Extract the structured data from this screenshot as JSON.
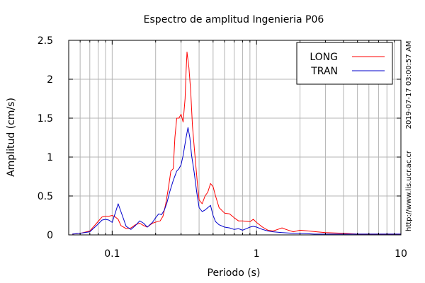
{
  "chart_data": {
    "type": "line",
    "title": "Espectro de amplitud Ingenieria P06",
    "xlabel": "Periodo (s)",
    "ylabel": "Amplitud (cm/s)",
    "x_scale": "log",
    "xlim": [
      0.05,
      10
    ],
    "ylim": [
      0,
      2.5
    ],
    "x_ticks": [
      0.1,
      1,
      10
    ],
    "x_tick_labels": [
      "0.1",
      "1",
      "10"
    ],
    "y_ticks": [
      0,
      0.5,
      1,
      1.5,
      2,
      2.5
    ],
    "y_tick_labels": [
      "0",
      "0.5",
      "1",
      "1.5",
      "2",
      "2.5"
    ],
    "grid": true,
    "legend_position": "top-right",
    "timestamp": "2019-07-17 03:00:57 AM",
    "source": "http://www.lis.ucr.ac.cr",
    "series": [
      {
        "name": "LONG",
        "color": "#ff0000",
        "points": [
          [
            0.053,
            0.01
          ],
          [
            0.06,
            0.02
          ],
          [
            0.07,
            0.05
          ],
          [
            0.078,
            0.15
          ],
          [
            0.085,
            0.23
          ],
          [
            0.09,
            0.24
          ],
          [
            0.095,
            0.24
          ],
          [
            0.1,
            0.25
          ],
          [
            0.105,
            0.23
          ],
          [
            0.11,
            0.2
          ],
          [
            0.115,
            0.12
          ],
          [
            0.125,
            0.08
          ],
          [
            0.135,
            0.09
          ],
          [
            0.145,
            0.13
          ],
          [
            0.155,
            0.15
          ],
          [
            0.165,
            0.12
          ],
          [
            0.175,
            0.1
          ],
          [
            0.19,
            0.15
          ],
          [
            0.205,
            0.17
          ],
          [
            0.215,
            0.18
          ],
          [
            0.225,
            0.24
          ],
          [
            0.235,
            0.4
          ],
          [
            0.245,
            0.6
          ],
          [
            0.255,
            0.82
          ],
          [
            0.265,
            0.85
          ],
          [
            0.272,
            1.25
          ],
          [
            0.28,
            1.5
          ],
          [
            0.29,
            1.5
          ],
          [
            0.3,
            1.55
          ],
          [
            0.31,
            1.45
          ],
          [
            0.32,
            1.75
          ],
          [
            0.325,
            2.1
          ],
          [
            0.33,
            2.35
          ],
          [
            0.34,
            2.15
          ],
          [
            0.35,
            1.85
          ],
          [
            0.36,
            1.4
          ],
          [
            0.375,
            1.0
          ],
          [
            0.39,
            0.65
          ],
          [
            0.4,
            0.45
          ],
          [
            0.42,
            0.4
          ],
          [
            0.44,
            0.5
          ],
          [
            0.46,
            0.55
          ],
          [
            0.48,
            0.66
          ],
          [
            0.5,
            0.62
          ],
          [
            0.52,
            0.5
          ],
          [
            0.55,
            0.35
          ],
          [
            0.6,
            0.28
          ],
          [
            0.65,
            0.27
          ],
          [
            0.7,
            0.22
          ],
          [
            0.75,
            0.18
          ],
          [
            0.8,
            0.18
          ],
          [
            0.9,
            0.17
          ],
          [
            0.95,
            0.2
          ],
          [
            1.0,
            0.16
          ],
          [
            1.1,
            0.1
          ],
          [
            1.2,
            0.06
          ],
          [
            1.3,
            0.05
          ],
          [
            1.4,
            0.07
          ],
          [
            1.5,
            0.09
          ],
          [
            1.6,
            0.07
          ],
          [
            1.8,
            0.04
          ],
          [
            2.0,
            0.06
          ],
          [
            2.3,
            0.05
          ],
          [
            2.6,
            0.04
          ],
          [
            3.0,
            0.03
          ],
          [
            4.0,
            0.02
          ],
          [
            5.0,
            0.01
          ],
          [
            7.0,
            0.01
          ],
          [
            10.0,
            0.01
          ]
        ]
      },
      {
        "name": "TRAN",
        "color": "#0000cc",
        "points": [
          [
            0.053,
            0.01
          ],
          [
            0.06,
            0.02
          ],
          [
            0.07,
            0.04
          ],
          [
            0.078,
            0.12
          ],
          [
            0.085,
            0.19
          ],
          [
            0.09,
            0.2
          ],
          [
            0.095,
            0.19
          ],
          [
            0.1,
            0.16
          ],
          [
            0.105,
            0.28
          ],
          [
            0.11,
            0.4
          ],
          [
            0.115,
            0.3
          ],
          [
            0.125,
            0.11
          ],
          [
            0.135,
            0.07
          ],
          [
            0.145,
            0.12
          ],
          [
            0.155,
            0.18
          ],
          [
            0.165,
            0.15
          ],
          [
            0.175,
            0.1
          ],
          [
            0.19,
            0.16
          ],
          [
            0.2,
            0.22
          ],
          [
            0.21,
            0.27
          ],
          [
            0.22,
            0.26
          ],
          [
            0.23,
            0.32
          ],
          [
            0.24,
            0.42
          ],
          [
            0.25,
            0.55
          ],
          [
            0.265,
            0.7
          ],
          [
            0.28,
            0.82
          ],
          [
            0.29,
            0.85
          ],
          [
            0.3,
            0.9
          ],
          [
            0.31,
            1.02
          ],
          [
            0.325,
            1.25
          ],
          [
            0.335,
            1.38
          ],
          [
            0.345,
            1.25
          ],
          [
            0.355,
            1.02
          ],
          [
            0.37,
            0.8
          ],
          [
            0.385,
            0.55
          ],
          [
            0.4,
            0.35
          ],
          [
            0.42,
            0.3
          ],
          [
            0.44,
            0.32
          ],
          [
            0.46,
            0.35
          ],
          [
            0.48,
            0.38
          ],
          [
            0.5,
            0.25
          ],
          [
            0.52,
            0.17
          ],
          [
            0.55,
            0.13
          ],
          [
            0.6,
            0.1
          ],
          [
            0.65,
            0.09
          ],
          [
            0.7,
            0.07
          ],
          [
            0.75,
            0.08
          ],
          [
            0.8,
            0.06
          ],
          [
            0.85,
            0.08
          ],
          [
            0.9,
            0.1
          ],
          [
            0.95,
            0.11
          ],
          [
            1.0,
            0.1
          ],
          [
            1.1,
            0.07
          ],
          [
            1.2,
            0.05
          ],
          [
            1.3,
            0.04
          ],
          [
            1.5,
            0.03
          ],
          [
            1.8,
            0.02
          ],
          [
            2.0,
            0.02
          ],
          [
            2.5,
            0.01
          ],
          [
            3.0,
            0.01
          ],
          [
            5.0,
            0.01
          ],
          [
            10.0,
            0.01
          ]
        ]
      }
    ]
  }
}
